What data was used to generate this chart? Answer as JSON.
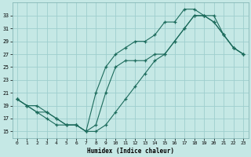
{
  "xlabel": "Humidex (Indice chaleur)",
  "background_color": "#c5e8e5",
  "grid_color": "#9ecece",
  "line_color": "#1c6b5c",
  "x_hours": [
    0,
    1,
    2,
    3,
    4,
    5,
    6,
    7,
    8,
    9,
    10,
    11,
    12,
    13,
    14,
    15,
    16,
    17,
    18,
    19,
    20,
    21,
    22,
    23
  ],
  "line1_y": [
    20,
    19,
    18,
    17,
    16,
    16,
    16,
    15,
    16,
    21,
    25,
    26,
    26,
    26,
    27,
    27,
    29,
    31,
    33,
    33,
    33,
    30,
    28,
    27
  ],
  "line2_y": [
    20,
    19,
    19,
    18,
    17,
    16,
    16,
    15,
    15,
    16,
    18,
    20,
    22,
    24,
    26,
    27,
    29,
    31,
    33,
    33,
    32,
    30,
    28,
    27
  ],
  "line3_y": [
    20,
    19,
    18,
    18,
    17,
    16,
    16,
    15,
    21,
    25,
    27,
    28,
    29,
    29,
    30,
    32,
    32,
    34,
    34,
    33,
    32,
    30,
    28,
    27
  ],
  "xlim": [
    -0.5,
    23.5
  ],
  "ylim": [
    14,
    35
  ],
  "yticks": [
    15,
    17,
    19,
    21,
    23,
    25,
    27,
    29,
    31,
    33
  ],
  "xticks": [
    0,
    1,
    2,
    3,
    4,
    5,
    6,
    7,
    8,
    9,
    10,
    11,
    12,
    13,
    14,
    15,
    16,
    17,
    18,
    19,
    20,
    21,
    22,
    23
  ]
}
